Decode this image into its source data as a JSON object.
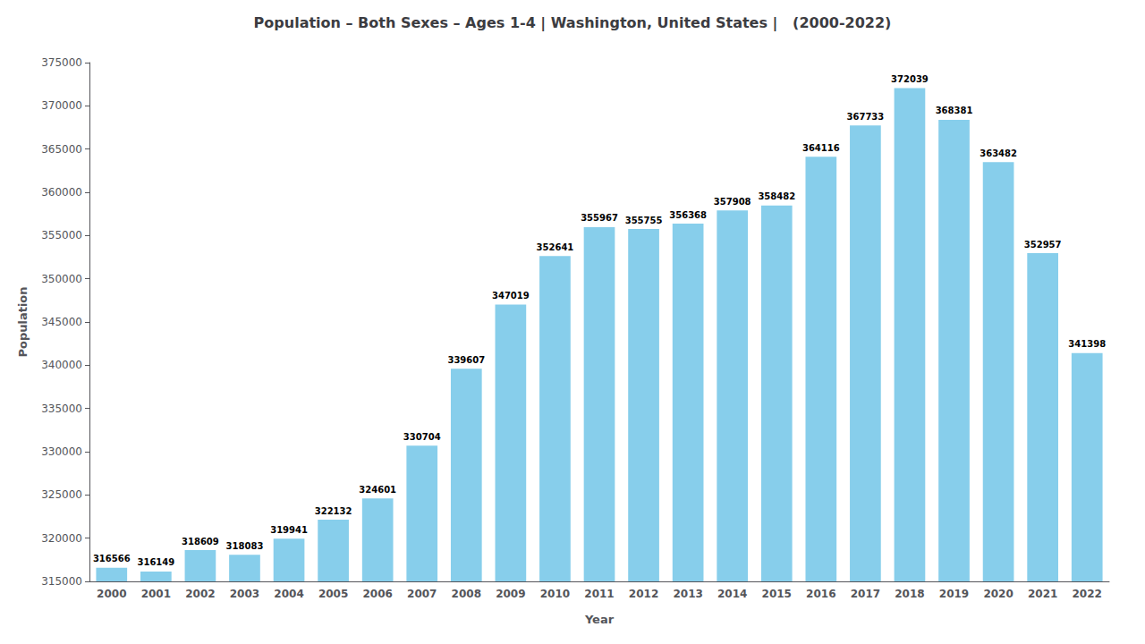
{
  "chart_data": {
    "type": "bar",
    "title": "Population – Both Sexes – Ages 1-4 | Washington, United States |   (2000-2022)",
    "xlabel": "Year",
    "ylabel": "Population",
    "color": "#87CEEB",
    "categories": [
      "2000",
      "2001",
      "2002",
      "2003",
      "2004",
      "2005",
      "2006",
      "2007",
      "2008",
      "2009",
      "2010",
      "2011",
      "2012",
      "2013",
      "2014",
      "2015",
      "2016",
      "2017",
      "2018",
      "2019",
      "2020",
      "2021",
      "2022"
    ],
    "values": [
      316566,
      316149,
      318609,
      318083,
      319941,
      322132,
      324601,
      330704,
      339607,
      347019,
      352641,
      355967,
      355755,
      356368,
      357908,
      358482,
      364116,
      367733,
      372039,
      368381,
      363482,
      352957,
      341398
    ],
    "ylim": [
      315000,
      375000
    ],
    "yticks": [
      315000,
      320000,
      325000,
      330000,
      335000,
      340000,
      345000,
      350000,
      355000,
      360000,
      365000,
      370000,
      375000
    ],
    "data_labels": true,
    "grid": false
  }
}
